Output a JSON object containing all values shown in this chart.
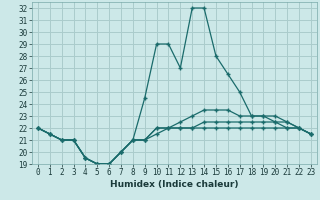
{
  "xlabel": "Humidex (Indice chaleur)",
  "bg_color": "#cce8e8",
  "grid_color": "#aacccc",
  "line_color": "#1a6b6b",
  "x": [
    0,
    1,
    2,
    3,
    4,
    5,
    6,
    7,
    8,
    9,
    10,
    11,
    12,
    13,
    14,
    15,
    16,
    17,
    18,
    19,
    20,
    21,
    22,
    23
  ],
  "line1": [
    22,
    21.5,
    21,
    21,
    19.5,
    19,
    19,
    20,
    21,
    21,
    21.5,
    22,
    22,
    22,
    22,
    22,
    22,
    22,
    22,
    22,
    22,
    22,
    22,
    21.5
  ],
  "line2": [
    22,
    21.5,
    21,
    21,
    19.5,
    19,
    19,
    20,
    21,
    21,
    22,
    22,
    22,
    22,
    22.5,
    22.5,
    22.5,
    22.5,
    22.5,
    22.5,
    22.5,
    22.5,
    22,
    21.5
  ],
  "line3": [
    22,
    21.5,
    21,
    21,
    19.5,
    19,
    19,
    20,
    21,
    21,
    22,
    22,
    22.5,
    23,
    23.5,
    23.5,
    23.5,
    23,
    23,
    23,
    23,
    22.5,
    22,
    21.5
  ],
  "line4": [
    22,
    21.5,
    21,
    21,
    19.5,
    19,
    19,
    20,
    21,
    24.5,
    29,
    29,
    27,
    32,
    32,
    28,
    26.5,
    25,
    23,
    23,
    22.5,
    22,
    22,
    21.5
  ],
  "ylim": [
    19,
    32.5
  ],
  "yticks": [
    19,
    20,
    21,
    22,
    23,
    24,
    25,
    26,
    27,
    28,
    29,
    30,
    31,
    32
  ],
  "xticks": [
    0,
    1,
    2,
    3,
    4,
    5,
    6,
    7,
    8,
    9,
    10,
    11,
    12,
    13,
    14,
    15,
    16,
    17,
    18,
    19,
    20,
    21,
    22,
    23
  ]
}
